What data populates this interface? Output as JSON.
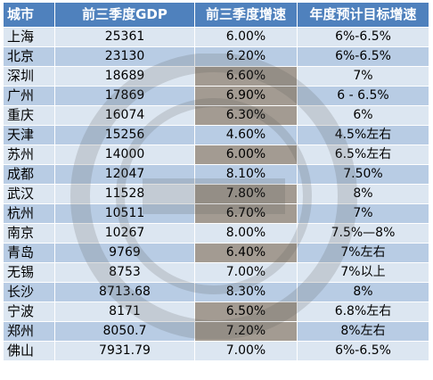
{
  "table": {
    "headers": [
      "城市",
      "前三季度GDP",
      "前三季度增速",
      "年度预计目标增速"
    ],
    "rows": [
      {
        "city": "上海",
        "gdp": "25361",
        "growth": "6.00%",
        "target": "6%-6.5%",
        "highlight": false
      },
      {
        "city": "北京",
        "gdp": "23130",
        "growth": "6.20%",
        "target": "6%-6.5%",
        "highlight": false
      },
      {
        "city": "深圳",
        "gdp": "18689",
        "growth": "6.60%",
        "target": "7%",
        "highlight": true
      },
      {
        "city": "广州",
        "gdp": "17869",
        "growth": "6.90%",
        "target": "6 - 6.5%",
        "highlight": true
      },
      {
        "city": "重庆",
        "gdp": "16074",
        "growth": "6.30%",
        "target": "6%",
        "highlight": true
      },
      {
        "city": "天津",
        "gdp": "15256",
        "growth": "4.60%",
        "target": "4.5%左右",
        "highlight": false
      },
      {
        "city": "苏州",
        "gdp": "14000",
        "growth": "6.00%",
        "target": "6.5%左右",
        "highlight": true
      },
      {
        "city": "成都",
        "gdp": "12047",
        "growth": "8.10%",
        "target": "7.50%",
        "highlight": false
      },
      {
        "city": "武汉",
        "gdp": "11528",
        "growth": "7.80%",
        "target": "8%",
        "highlight": true
      },
      {
        "city": "杭州",
        "gdp": "10511",
        "growth": "6.70%",
        "target": "7%",
        "highlight": true
      },
      {
        "city": "南京",
        "gdp": "10267",
        "growth": "8.00%",
        "target": "7.5%—8%",
        "highlight": false
      },
      {
        "city": "青岛",
        "gdp": "9769",
        "growth": "6.40%",
        "target": "7%左右",
        "highlight": true
      },
      {
        "city": "无锡",
        "gdp": "8753",
        "growth": "7.00%",
        "target": "7%以上",
        "highlight": false
      },
      {
        "city": "长沙",
        "gdp": "8713.68",
        "growth": "8.30%",
        "target": "8%",
        "highlight": false
      },
      {
        "city": "宁波",
        "gdp": "8171",
        "growth": "6.50%",
        "target": "6.8%左右",
        "highlight": true
      },
      {
        "city": "郑州",
        "gdp": "8050.7",
        "growth": "7.20%",
        "target": "8%左右",
        "highlight": true
      },
      {
        "city": "佛山",
        "gdp": "7931.79",
        "growth": "7.00%",
        "target": "6%-6.5%",
        "highlight": false
      }
    ]
  },
  "colors": {
    "header_bg": "#4f81bd",
    "row_light": "#dce6f1",
    "row_dark": "#b8cce4",
    "highlight": "#a39b92"
  }
}
